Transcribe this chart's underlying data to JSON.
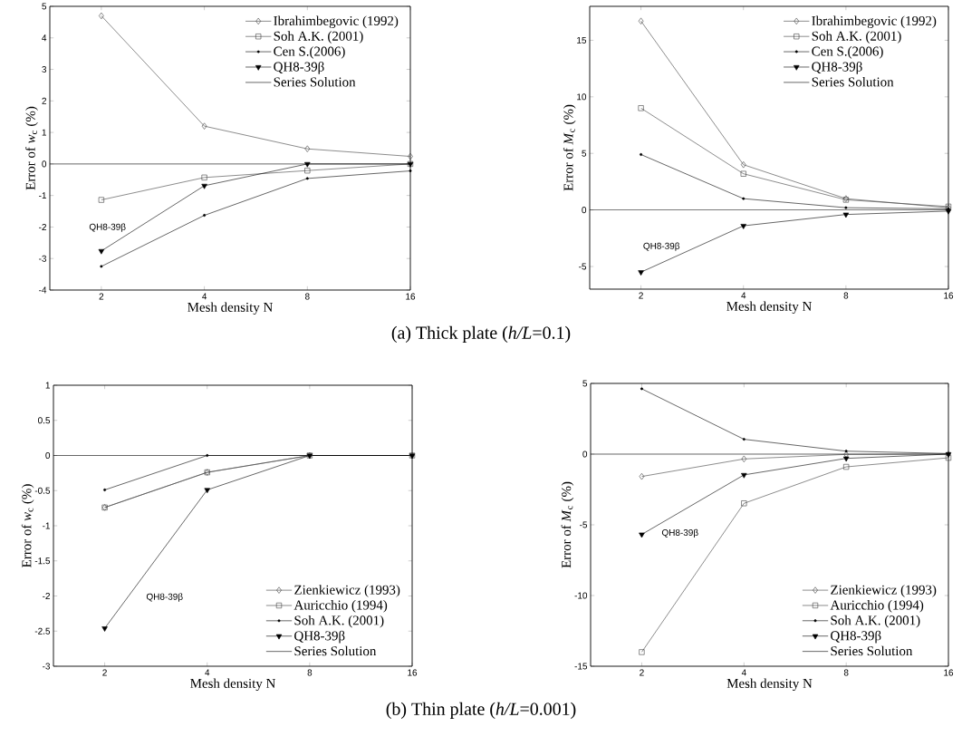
{
  "chart_data": [
    {
      "type": "line",
      "log": "x",
      "xlabel": "Mesh density  N",
      "ylabel": "Error of *w*$_{c}$  (%)",
      "xlim": [
        1.414,
        16
      ],
      "xticks": [
        2,
        4,
        8,
        16
      ],
      "ylim": [
        -4,
        5
      ],
      "yticks": [
        -4,
        -3,
        -2,
        -1,
        0,
        1,
        2,
        3,
        4,
        5
      ],
      "legend": "top right",
      "line_style": "solid",
      "series": [
        {
          "name": "Ibrahimbegovic (1992)",
          "color": "#404040",
          "marker": "diamond",
          "x": [
            2,
            4,
            8,
            16
          ],
          "values": [
            4.7,
            1.2,
            0.48,
            0.24
          ]
        },
        {
          "name": "Soh A.K. (2001)",
          "color": "#404040",
          "marker": "square",
          "x": [
            2,
            4,
            8,
            16
          ],
          "values": [
            -1.14,
            -0.43,
            -0.21,
            0
          ]
        },
        {
          "name": "Cen S.(2006)",
          "color": "#000000",
          "marker": "circle",
          "x": [
            2,
            4,
            8,
            16
          ],
          "values": [
            -3.25,
            -1.63,
            -0.46,
            -0.22
          ]
        },
        {
          "name": "QH8-39β",
          "color": "#000000",
          "marker": "triangle",
          "x": [
            2,
            4,
            8,
            16
          ],
          "values": [
            -2.76,
            -0.69,
            0,
            0
          ]
        },
        {
          "name": "Series Solution",
          "color": "#000000",
          "marker": "none",
          "x": [
            1.414,
            16
          ],
          "values": [
            0,
            0
          ]
        }
      ],
      "annotations": [
        "QH8-39β",
        "(a) Thick plate (*h/L*=0.1)"
      ]
    },
    {
      "type": "line",
      "log": "x",
      "xlabel": "Mesh density  N",
      "ylabel": "Error of *M*$_{c}$  (%)",
      "xlim": [
        1.414,
        16
      ],
      "xticks": [
        2,
        4,
        8,
        16
      ],
      "ylim": [
        -7,
        18
      ],
      "yticks": [
        -5,
        0,
        5,
        10,
        15
      ],
      "legend": "top right",
      "line_style": "solid",
      "series": [
        {
          "name": "Ibrahimbegovic (1992)",
          "color": "#404040",
          "marker": "diamond",
          "x": [
            2,
            4,
            8,
            16
          ],
          "values": [
            16.7,
            4.0,
            1.0,
            0.2
          ]
        },
        {
          "name": "Soh A.K. (2001)",
          "color": "#404040",
          "marker": "square",
          "x": [
            2,
            4,
            8,
            16
          ],
          "values": [
            9.0,
            3.2,
            0.9,
            0.3
          ]
        },
        {
          "name": "Cen S.(2006)",
          "color": "#000000",
          "marker": "circle",
          "x": [
            2,
            4,
            8,
            16
          ],
          "values": [
            4.9,
            1.0,
            0.2,
            0.1
          ]
        },
        {
          "name": "QH8-39β",
          "color": "#000000",
          "marker": "triangle",
          "x": [
            2,
            4,
            8,
            16
          ],
          "values": [
            -5.5,
            -1.4,
            -0.4,
            -0.1
          ]
        },
        {
          "name": "Series Solution",
          "color": "#000000",
          "marker": "none",
          "x": [
            1.414,
            16
          ],
          "values": [
            0,
            0
          ]
        }
      ],
      "annotations": [
        "QH8-39β"
      ]
    },
    {
      "type": "line",
      "log": "x",
      "xlabel": "Mesh density  N",
      "ylabel": "Error of *w*$_{c}$  (%)",
      "xlim": [
        1.414,
        16
      ],
      "xticks": [
        2,
        4,
        8,
        16
      ],
      "ylim": [
        -3,
        1
      ],
      "yticks": [
        -3,
        -2.5,
        -2,
        -1.5,
        -1,
        -0.5,
        0,
        0.5,
        1
      ],
      "legend": "bottom right",
      "line_style": "solid",
      "series": [
        {
          "name": "Zienkiewicz (1993)",
          "color": "#404040",
          "marker": "diamond",
          "x": [
            2,
            4,
            8,
            16
          ],
          "values": [
            -0.74,
            -0.24,
            0,
            0
          ]
        },
        {
          "name": "Auricchio (1994)",
          "color": "#404040",
          "marker": "square",
          "x": [
            2,
            4,
            8,
            16
          ],
          "values": [
            -0.74,
            -0.24,
            0,
            0
          ]
        },
        {
          "name": "Soh A.K. (2001)",
          "color": "#000000",
          "marker": "circle",
          "x": [
            2,
            4,
            8,
            16
          ],
          "values": [
            -0.49,
            0,
            0,
            0
          ]
        },
        {
          "name": "QH8-39β",
          "color": "#000000",
          "marker": "triangle",
          "x": [
            2,
            4,
            8,
            16
          ],
          "values": [
            -2.46,
            -0.49,
            0,
            0
          ]
        },
        {
          "name": "Series Solution",
          "color": "#000000",
          "marker": "none",
          "x": [
            1.414,
            16
          ],
          "values": [
            0,
            0
          ]
        }
      ],
      "annotations": [
        "QH8-39β",
        "(b) Thin plate (*h/L*=0.001)"
      ]
    },
    {
      "type": "line",
      "log": "x",
      "xlabel": "Mesh density  N",
      "ylabel": "Error of *M*$_{c}$  (%)",
      "xlim": [
        1.414,
        16
      ],
      "xticks": [
        2,
        4,
        8,
        16
      ],
      "ylim": [
        -15,
        5
      ],
      "yticks": [
        -15,
        -10,
        -5,
        0,
        5
      ],
      "legend": "bottom right",
      "line_style": "solid",
      "series": [
        {
          "name": "Zienkiewicz (1993)",
          "color": "#404040",
          "marker": "diamond",
          "x": [
            2,
            4,
            8,
            16
          ],
          "values": [
            -1.58,
            -0.34,
            -0.02,
            0
          ]
        },
        {
          "name": "Auricchio (1994)",
          "color": "#404040",
          "marker": "square",
          "x": [
            2,
            4,
            8,
            16
          ],
          "values": [
            -14.0,
            -3.48,
            -0.9,
            -0.26
          ]
        },
        {
          "name": "Soh A.K. (2001)",
          "color": "#000000",
          "marker": "circle",
          "x": [
            2,
            4,
            8,
            16
          ],
          "values": [
            4.62,
            1.05,
            0.21,
            0.04
          ]
        },
        {
          "name": "QH8-39β",
          "color": "#000000",
          "marker": "triangle",
          "x": [
            2,
            4,
            8,
            16
          ],
          "values": [
            -5.68,
            -1.47,
            -0.3,
            0
          ]
        },
        {
          "name": "Series Solution",
          "color": "#000000",
          "marker": "none",
          "x": [
            1.414,
            16
          ],
          "values": [
            0,
            0
          ]
        }
      ],
      "annotations": [
        "QH8-39β"
      ]
    }
  ]
}
